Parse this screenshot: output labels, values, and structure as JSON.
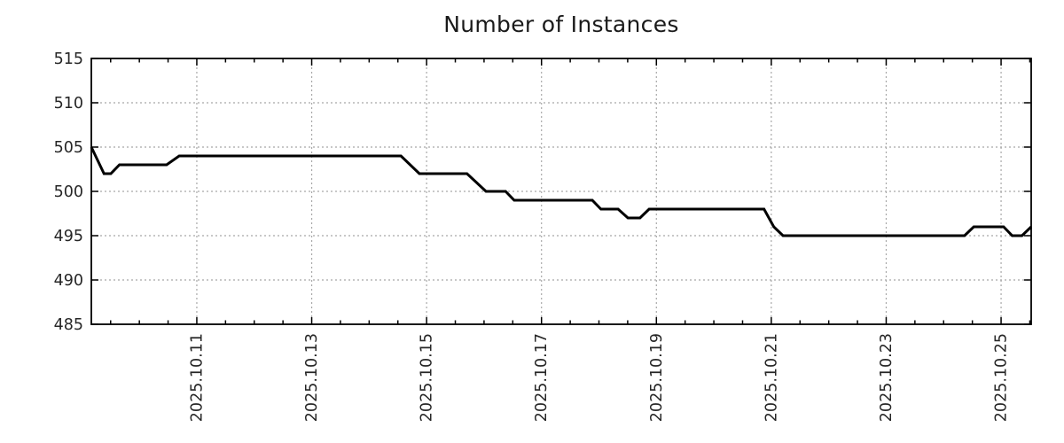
{
  "chart_data": {
    "type": "line",
    "title": "Number of Instances",
    "grid": true,
    "legend": false,
    "colors": {
      "line": "#000000",
      "grid": "#a8a8a8",
      "axis": "#000000",
      "text": "#262626"
    },
    "x_axis": {
      "unit": "date",
      "range_days": [
        0,
        16.36
      ],
      "major_ticks": [
        {
          "pos": 1.836,
          "label": "2025.10.11"
        },
        {
          "pos": 3.836,
          "label": "2025.10.13"
        },
        {
          "pos": 5.836,
          "label": "2025.10.15"
        },
        {
          "pos": 7.836,
          "label": "2025.10.17"
        },
        {
          "pos": 9.836,
          "label": "2025.10.19"
        },
        {
          "pos": 11.836,
          "label": "2025.10.21"
        },
        {
          "pos": 13.836,
          "label": "2025.10.23"
        },
        {
          "pos": 15.836,
          "label": "2025.10.25"
        }
      ],
      "minor_tick_start": 0.336,
      "minor_tick_step": 0.5
    },
    "y_axis": {
      "range": [
        485,
        515
      ],
      "ticks": [
        485,
        490,
        495,
        500,
        505,
        510,
        515
      ]
    },
    "series": [
      {
        "name": "instances",
        "color": "#000000",
        "points": [
          [
            0.0,
            505
          ],
          [
            0.22,
            502
          ],
          [
            0.34,
            502
          ],
          [
            0.49,
            503
          ],
          [
            1.31,
            503
          ],
          [
            1.53,
            504
          ],
          [
            5.39,
            504
          ],
          [
            5.71,
            502
          ],
          [
            6.54,
            502
          ],
          [
            6.87,
            500
          ],
          [
            7.21,
            500
          ],
          [
            7.36,
            499
          ],
          [
            8.72,
            499
          ],
          [
            8.87,
            498
          ],
          [
            9.17,
            498
          ],
          [
            9.34,
            497
          ],
          [
            9.55,
            497
          ],
          [
            9.71,
            498
          ],
          [
            11.71,
            498
          ],
          [
            11.88,
            496
          ],
          [
            12.04,
            495
          ],
          [
            15.2,
            495
          ],
          [
            15.36,
            496
          ],
          [
            15.88,
            496
          ],
          [
            16.03,
            495
          ],
          [
            16.2,
            495
          ],
          [
            16.36,
            496
          ]
        ]
      }
    ]
  }
}
